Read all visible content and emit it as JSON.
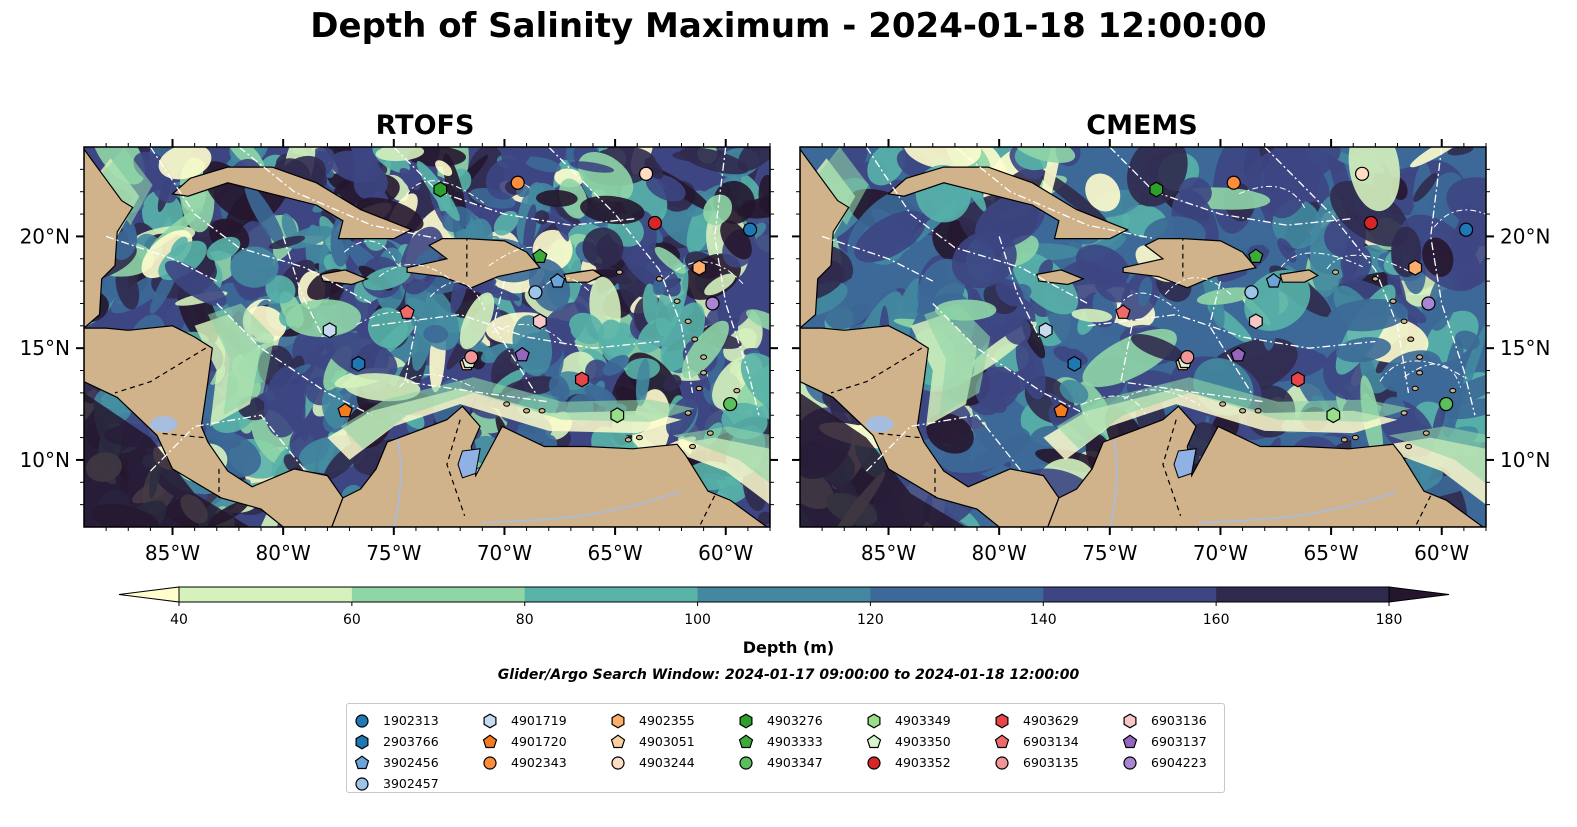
{
  "title": "Depth of Salinity Maximum - 2024-01-18 12:00:00",
  "colorbar_label": "Depth (m)",
  "search_window": "Glider/Argo Search Window: 2024-01-17 09:00:00 to 2024-01-18 12:00:00",
  "colors": {
    "land": "#d0b38b",
    "lake": "#8fb1e3",
    "river": "#a7bde0",
    "grid_line": "#ffffff",
    "colormap": [
      "#fffdcd",
      "#d5f1bc",
      "#8fd5a6",
      "#58b3a9",
      "#4388a0",
      "#3c6997",
      "#3d4683",
      "#302a4e",
      "#25162d"
    ]
  },
  "chart_data": [
    {
      "type": "heatmap",
      "title": "RTOFS",
      "xlim": [
        -89,
        -58
      ],
      "ylim": [
        7,
        24
      ],
      "x_ticks": [
        -85,
        -80,
        -75,
        -70,
        -65,
        -60
      ],
      "x_tick_labels": [
        "85°W",
        "80°W",
        "75°W",
        "70°W",
        "65°W",
        "60°W"
      ],
      "y_ticks": [
        10,
        15,
        20
      ],
      "y_tick_labels": [
        "10°N",
        "15°N",
        "20°N"
      ],
      "y_labels_side": "left",
      "field": "highly variable, mostly 100-180 m in the central basin with shallow (<60 m) bands along the South American and Central American coasts"
    },
    {
      "type": "heatmap",
      "title": "CMEMS",
      "xlim": [
        -89,
        -58
      ],
      "ylim": [
        7,
        24
      ],
      "x_ticks": [
        -85,
        -80,
        -75,
        -70,
        -65,
        -60
      ],
      "x_tick_labels": [
        "85°W",
        "80°W",
        "75°W",
        "70°W",
        "65°W",
        "60°W"
      ],
      "y_ticks": [
        10,
        15,
        20
      ],
      "y_tick_labels": [
        "10°N",
        "15°N",
        "20°N"
      ],
      "y_labels_side": "right",
      "field": "smoother, mostly 100-160 m with shallow (<60 m) areas near coasts and off Nicaragua"
    }
  ],
  "colorbar": {
    "levels": [
      40,
      60,
      80,
      100,
      120,
      140,
      160,
      180
    ],
    "tick_labels": [
      "40",
      "60",
      "80",
      "100",
      "120",
      "140",
      "160",
      "180"
    ],
    "extend": "both"
  },
  "floats": [
    {
      "id": "1902313",
      "marker": "circle",
      "color": "#1f77b4",
      "lon": -58.9,
      "lat": 20.3
    },
    {
      "id": "2903766",
      "marker": "hexagon",
      "color": "#1f77b4",
      "lon": -76.6,
      "lat": 14.3
    },
    {
      "id": "3902456",
      "marker": "pentagon",
      "color": "#6ba4d8",
      "lon": -67.6,
      "lat": 18.0
    },
    {
      "id": "3902457",
      "marker": "circle",
      "color": "#9cc5ea",
      "lon": -68.6,
      "lat": 17.5
    },
    {
      "id": "4901719",
      "marker": "hexagon",
      "color": "#c6dbef",
      "lon": -77.9,
      "lat": 15.8
    },
    {
      "id": "4901720",
      "marker": "pentagon",
      "color": "#f47c20",
      "lon": -77.2,
      "lat": 12.2
    },
    {
      "id": "4902343",
      "marker": "circle",
      "color": "#fd8d3c",
      "lon": -69.4,
      "lat": 22.4
    },
    {
      "id": "4902355",
      "marker": "hexagon",
      "color": "#fdae6b",
      "lon": -61.2,
      "lat": 18.6
    },
    {
      "id": "4903051",
      "marker": "pentagon",
      "color": "#fdd0a2",
      "lon": -71.7,
      "lat": 14.3
    },
    {
      "id": "4903244",
      "marker": "circle",
      "color": "#feddc3",
      "lon": -63.6,
      "lat": 22.8
    },
    {
      "id": "4903276",
      "marker": "hexagon",
      "color": "#2ca02c",
      "lon": -72.9,
      "lat": 22.1
    },
    {
      "id": "4903333",
      "marker": "pentagon",
      "color": "#3cab3c",
      "lon": -68.4,
      "lat": 19.1
    },
    {
      "id": "4903347",
      "marker": "circle",
      "color": "#5dbe5d",
      "lon": -59.8,
      "lat": 12.5
    },
    {
      "id": "4903349",
      "marker": "hexagon",
      "color": "#98df8a",
      "lon": -64.9,
      "lat": 12.0
    },
    {
      "id": "4903350",
      "marker": "pentagon",
      "color": "#d7f5cf",
      "lon": -71.6,
      "lat": 14.4
    },
    {
      "id": "4903352",
      "marker": "circle",
      "color": "#d62728",
      "lon": -63.2,
      "lat": 20.6
    },
    {
      "id": "4903629",
      "marker": "hexagon",
      "color": "#e6454a",
      "lon": -66.5,
      "lat": 13.6
    },
    {
      "id": "6903134",
      "marker": "pentagon",
      "color": "#f06a6c",
      "lon": -74.4,
      "lat": 16.6
    },
    {
      "id": "6903135",
      "marker": "circle",
      "color": "#f19597",
      "lon": -71.5,
      "lat": 14.6
    },
    {
      "id": "6903136",
      "marker": "hexagon",
      "color": "#f7c6c7",
      "lon": -68.4,
      "lat": 16.2
    },
    {
      "id": "6903137",
      "marker": "pentagon",
      "color": "#9467bd",
      "lon": -69.2,
      "lat": 14.7
    },
    {
      "id": "6904223",
      "marker": "circle",
      "color": "#a985d3",
      "lon": -60.6,
      "lat": 17.0
    }
  ]
}
